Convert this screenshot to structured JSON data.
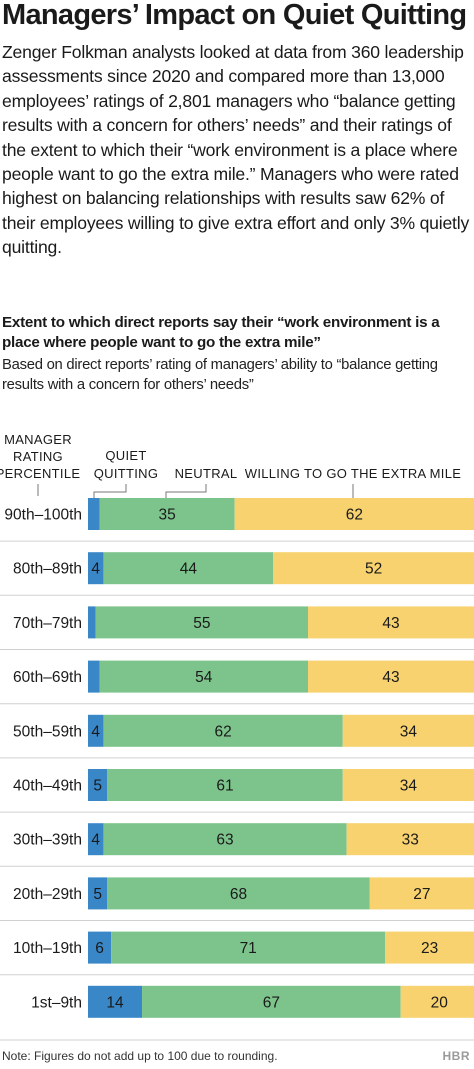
{
  "title": "Managers’ Impact on Quiet Quitting",
  "intro": "Zenger Folkman analysts looked at data from 360 leadership assessments since 2020 and compared more than 13,000 employees’ ratings of 2,801 managers who “balance getting results with a concern for others’ needs” and their ratings of the extent to which their “work environment is a place where people want to go the extra mile.” Managers who were rated highest on balancing relationships with results saw 62% of their employees willing to give extra effort and only 3% quietly quitting.",
  "note": "Note: Figures do not add up to 100 due to rounding.",
  "logo": "HBR",
  "colors": {
    "quiet_quitting": "#3a87c7",
    "neutral": "#7dc48c",
    "willing": "#f7d26e"
  },
  "chart_data": {
    "type": "bar",
    "orientation": "horizontal",
    "stacked": true,
    "title": "Extent to which direct reports say their “work environment is a place where people want to go the extra mile”",
    "subtitle": "Based on direct reports’ rating of managers’ ability to “balance getting results with a concern for others’ needs”",
    "category_header": "MANAGER RATING PERCENTILE",
    "categories": [
      "90th–100th",
      "80th–89th",
      "70th–79th",
      "60th–69th",
      "50th–59th",
      "40th–49th",
      "30th–39th",
      "20th–29th",
      "10th–19th",
      "1st–9th"
    ],
    "series": [
      {
        "name": "QUIET QUITTING",
        "values": [
          3,
          4,
          2,
          3,
          4,
          5,
          4,
          5,
          6,
          14
        ],
        "labels": [
          "3%",
          "4",
          "2",
          "3",
          "4",
          "5",
          "4",
          "5",
          "6",
          "14"
        ]
      },
      {
        "name": "NEUTRAL",
        "values": [
          35,
          44,
          55,
          54,
          62,
          61,
          63,
          68,
          71,
          67
        ],
        "labels": [
          "35",
          "44",
          "55",
          "54",
          "62",
          "61",
          "63",
          "68",
          "71",
          "67"
        ]
      },
      {
        "name": "WILLING TO GO THE EXTRA MILE",
        "values": [
          62,
          52,
          43,
          43,
          34,
          34,
          33,
          27,
          23,
          20
        ],
        "labels": [
          "62",
          "52",
          "43",
          "43",
          "34",
          "34",
          "33",
          "27",
          "23",
          "20"
        ]
      }
    ],
    "header_lines": {
      "manager": [
        "MANAGER",
        "RATING",
        "PERCENTILE"
      ],
      "quiet": [
        "QUIET",
        "QUITTING"
      ],
      "neutral": [
        "NEUTRAL"
      ],
      "willing": [
        "WILLING TO GO THE EXTRA MILE"
      ]
    }
  }
}
